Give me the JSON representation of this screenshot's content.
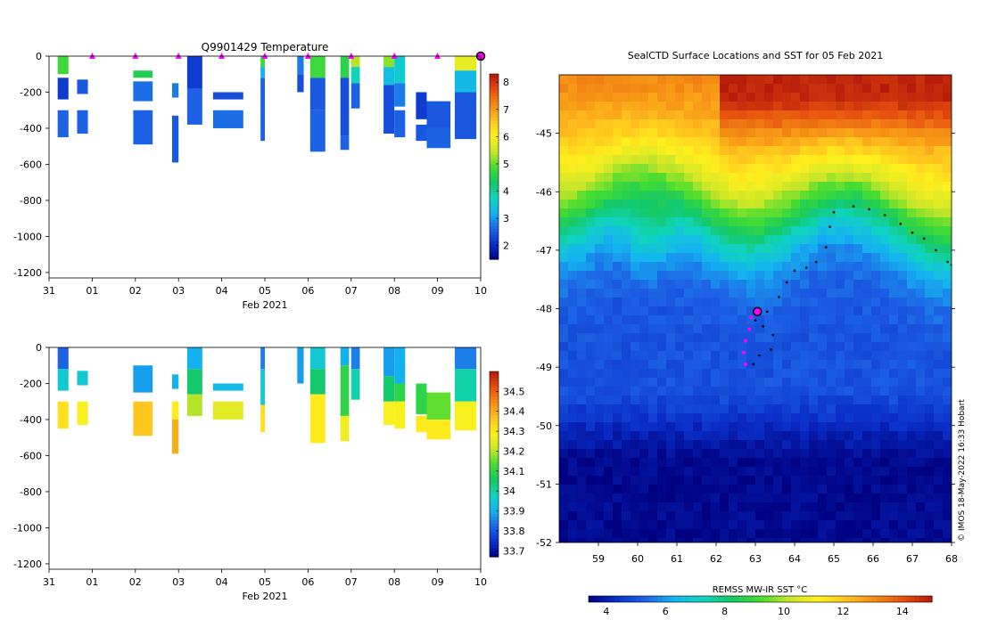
{
  "colors": {
    "temp_scale": [
      "#000080",
      "#0a2fc8",
      "#1e64e6",
      "#14b4f0",
      "#10d4c0",
      "#14c864",
      "#46dc32",
      "#c8e628",
      "#fff01e",
      "#ffc31e",
      "#f58c14",
      "#e6500f",
      "#b4190a"
    ],
    "sal_scale": [
      "#000080",
      "#0a2fc8",
      "#1e64e6",
      "#14b4f0",
      "#10d4c0",
      "#14c864",
      "#46dc32",
      "#c8e628",
      "#fff01e",
      "#ffc31e",
      "#f58c14",
      "#e6500f",
      "#b4190a"
    ],
    "sst_scale": [
      "#000080",
      "#0a2fc8",
      "#1e64e6",
      "#14b4f0",
      "#10d4c0",
      "#14c864",
      "#46dc32",
      "#c8e628",
      "#fff01e",
      "#ffc31e",
      "#f58c14",
      "#e6500f",
      "#b4190a"
    ],
    "marker": "#ff00ff"
  },
  "chart_data": [
    {
      "type": "heatmap",
      "id": "temperature",
      "title": "Q9901429  Temperature",
      "xlabel": "Feb 2021",
      "xlim": [
        0,
        10
      ],
      "xticks": [
        0,
        1,
        2,
        3,
        4,
        5,
        6,
        7,
        8,
        9,
        10
      ],
      "xtick_labels": [
        "31",
        "01",
        "02",
        "03",
        "04",
        "05",
        "06",
        "07",
        "08",
        "09",
        "10"
      ],
      "ylim": [
        -1230,
        0
      ],
      "yticks": [
        0,
        -200,
        -400,
        -600,
        -800,
        -1000,
        -1200
      ],
      "ytick_labels": [
        "0",
        "-200",
        "-400",
        "-600",
        "-800",
        "-1000",
        "-1200"
      ],
      "colorbar": {
        "range": [
          1.5,
          8.3
        ],
        "ticks": [
          2,
          3,
          4,
          5,
          6,
          7,
          8
        ],
        "labels": [
          "2",
          "3",
          "4",
          "5",
          "6",
          "7",
          "8"
        ]
      },
      "markers_x": [
        1,
        2,
        3,
        4,
        5,
        6,
        7,
        8,
        9
      ],
      "end_marker_x": 10,
      "profiles": [
        {
          "x0": 0.2,
          "x1": 0.45,
          "segs": [
            [
              0,
              -100,
              4.8
            ],
            [
              -120,
              -240,
              2.2
            ],
            [
              -300,
              -450,
              2.6
            ]
          ]
        },
        {
          "x0": 0.65,
          "x1": 0.9,
          "segs": [
            [
              -130,
              -210,
              2.5
            ],
            [
              -300,
              -430,
              2.6
            ]
          ]
        },
        {
          "x0": 1.95,
          "x1": 2.4,
          "segs": [
            [
              -80,
              -120,
              4.5
            ],
            [
              -140,
              -250,
              2.7
            ],
            [
              -300,
              -490,
              2.6
            ]
          ]
        },
        {
          "x0": 2.85,
          "x1": 3.0,
          "segs": [
            [
              -150,
              -230,
              2.8
            ],
            [
              -330,
              -590,
              2.5
            ]
          ]
        },
        {
          "x0": 3.2,
          "x1": 3.55,
          "segs": [
            [
              0,
              -180,
              2.2
            ],
            [
              -180,
              -380,
              2.6
            ]
          ]
        },
        {
          "x0": 3.8,
          "x1": 4.5,
          "segs": [
            [
              -200,
              -240,
              2.4
            ],
            [
              -300,
              -400,
              2.7
            ]
          ]
        },
        {
          "x0": 4.9,
          "x1": 5.0,
          "segs": [
            [
              0,
              -60,
              4.8
            ],
            [
              -60,
              -120,
              3.2
            ],
            [
              -120,
              -470,
              2.6
            ]
          ]
        },
        {
          "x0": 5.75,
          "x1": 5.9,
          "segs": [
            [
              0,
              -100,
              2.8
            ],
            [
              -100,
              -200,
              2.4
            ]
          ]
        },
        {
          "x0": 6.05,
          "x1": 6.4,
          "segs": [
            [
              0,
              -120,
              4.8
            ],
            [
              -120,
              -300,
              2.5
            ],
            [
              -300,
              -530,
              2.6
            ]
          ]
        },
        {
          "x0": 6.75,
          "x1": 6.95,
          "segs": [
            [
              0,
              -120,
              4.6
            ],
            [
              -120,
              -440,
              2.4
            ],
            [
              -440,
              -520,
              2.6
            ]
          ]
        },
        {
          "x0": 7.0,
          "x1": 7.2,
          "segs": [
            [
              0,
              -60,
              5.4
            ],
            [
              -60,
              -150,
              3.8
            ],
            [
              -150,
              -290,
              2.6
            ]
          ]
        },
        {
          "x0": 7.75,
          "x1": 8.0,
          "segs": [
            [
              0,
              -60,
              5.2
            ],
            [
              -60,
              -160,
              3.4
            ],
            [
              -160,
              -430,
              2.4
            ]
          ]
        },
        {
          "x0": 8.0,
          "x1": 8.25,
          "segs": [
            [
              0,
              -150,
              3.6
            ],
            [
              -150,
              -280,
              2.8
            ],
            [
              -300,
              -450,
              2.6
            ]
          ]
        },
        {
          "x0": 8.5,
          "x1": 8.75,
          "segs": [
            [
              -200,
              -350,
              2.2
            ],
            [
              -380,
              -470,
              2.5
            ]
          ]
        },
        {
          "x0": 8.75,
          "x1": 9.3,
          "segs": [
            [
              -250,
              -400,
              2.5
            ],
            [
              -400,
              -510,
              2.6
            ]
          ]
        },
        {
          "x0": 9.4,
          "x1": 9.9,
          "segs": [
            [
              0,
              -80,
              5.8
            ],
            [
              -80,
              -200,
              3.3
            ],
            [
              -200,
              -460,
              2.5
            ]
          ]
        }
      ]
    },
    {
      "type": "heatmap",
      "id": "salinity",
      "title": "",
      "xlabel": "Feb 2021",
      "xlim": [
        0,
        10
      ],
      "xticks": [
        0,
        1,
        2,
        3,
        4,
        5,
        6,
        7,
        8,
        9,
        10
      ],
      "xtick_labels": [
        "31",
        "01",
        "02",
        "03",
        "04",
        "05",
        "06",
        "07",
        "08",
        "09",
        "10"
      ],
      "ylim": [
        -1230,
        0
      ],
      "yticks": [
        0,
        -200,
        -400,
        -600,
        -800,
        -1000,
        -1200
      ],
      "ytick_labels": [
        "0",
        "-200",
        "-400",
        "-600",
        "-800",
        "-1000",
        "-1200"
      ],
      "colorbar": {
        "range": [
          33.67,
          34.6
        ],
        "ticks": [
          33.7,
          33.8,
          33.9,
          34,
          34.1,
          34.2,
          34.3,
          34.4,
          34.5
        ],
        "labels": [
          "33.7",
          "33.8",
          "33.9",
          "34",
          "34.1",
          "34.2",
          "34.3",
          "34.4",
          "34.5"
        ]
      },
      "profiles": [
        {
          "x0": 0.2,
          "x1": 0.45,
          "segs": [
            [
              0,
              -120,
              33.82
            ],
            [
              -120,
              -240,
              33.95
            ],
            [
              -300,
              -450,
              34.32
            ]
          ]
        },
        {
          "x0": 0.65,
          "x1": 0.9,
          "segs": [
            [
              -130,
              -210,
              33.95
            ],
            [
              -300,
              -430,
              34.28
            ]
          ]
        },
        {
          "x0": 1.95,
          "x1": 2.4,
          "segs": [
            [
              -100,
              -250,
              33.88
            ],
            [
              -300,
              -490,
              34.36
            ]
          ]
        },
        {
          "x0": 2.85,
          "x1": 3.0,
          "segs": [
            [
              -150,
              -230,
              33.9
            ],
            [
              -300,
              -400,
              34.3
            ],
            [
              -400,
              -590,
              34.4
            ]
          ]
        },
        {
          "x0": 3.2,
          "x1": 3.55,
          "segs": [
            [
              0,
              -120,
              33.9
            ],
            [
              -120,
              -260,
              34.05
            ],
            [
              -260,
              -380,
              34.2
            ]
          ]
        },
        {
          "x0": 3.8,
          "x1": 4.5,
          "segs": [
            [
              -200,
              -240,
              33.92
            ],
            [
              -300,
              -400,
              34.25
            ]
          ]
        },
        {
          "x0": 4.9,
          "x1": 5.0,
          "segs": [
            [
              0,
              -120,
              33.85
            ],
            [
              -120,
              -320,
              33.95
            ],
            [
              -320,
              -470,
              34.32
            ]
          ]
        },
        {
          "x0": 5.75,
          "x1": 5.9,
          "segs": [
            [
              0,
              -200,
              33.88
            ]
          ]
        },
        {
          "x0": 6.05,
          "x1": 6.4,
          "segs": [
            [
              0,
              -120,
              33.95
            ],
            [
              -120,
              -260,
              34.05
            ],
            [
              -260,
              -530,
              34.3
            ]
          ]
        },
        {
          "x0": 6.75,
          "x1": 6.95,
          "segs": [
            [
              0,
              -100,
              33.9
            ],
            [
              -100,
              -380,
              34.1
            ],
            [
              -380,
              -520,
              34.27
            ]
          ]
        },
        {
          "x0": 7.0,
          "x1": 7.2,
          "segs": [
            [
              0,
              -120,
              33.85
            ],
            [
              -120,
              -290,
              34.0
            ]
          ]
        },
        {
          "x0": 7.75,
          "x1": 8.0,
          "segs": [
            [
              0,
              -160,
              33.88
            ],
            [
              -160,
              -300,
              34.05
            ],
            [
              -300,
              -430,
              34.28
            ]
          ]
        },
        {
          "x0": 8.0,
          "x1": 8.25,
          "segs": [
            [
              0,
              -200,
              33.9
            ],
            [
              -200,
              -300,
              34.1
            ],
            [
              -300,
              -450,
              34.28
            ]
          ]
        },
        {
          "x0": 8.5,
          "x1": 8.75,
          "segs": [
            [
              -200,
              -370,
              34.1
            ],
            [
              -380,
              -470,
              34.3
            ]
          ]
        },
        {
          "x0": 8.75,
          "x1": 9.3,
          "segs": [
            [
              -250,
              -400,
              34.15
            ],
            [
              -400,
              -510,
              34.3
            ]
          ]
        },
        {
          "x0": 9.4,
          "x1": 9.9,
          "segs": [
            [
              0,
              -120,
              33.85
            ],
            [
              -120,
              -300,
              34.0
            ],
            [
              -300,
              -460,
              34.28
            ]
          ]
        }
      ]
    },
    {
      "type": "heatmap",
      "id": "sst_map",
      "title": "SealCTD Surface Locations and SST for 05 Feb 2021",
      "xlabel": "",
      "xlim": [
        58,
        68
      ],
      "xticks": [
        59,
        60,
        61,
        62,
        63,
        64,
        65,
        66,
        67,
        68
      ],
      "xtick_labels": [
        "59",
        "60",
        "61",
        "62",
        "63",
        "64",
        "65",
        "66",
        "67",
        "68"
      ],
      "ylim": [
        -52,
        -44
      ],
      "yticks": [
        -45,
        -46,
        -47,
        -48,
        -49,
        -50,
        -51,
        -52
      ],
      "ytick_labels": [
        "-45",
        "-46",
        "-47",
        "-48",
        "-49",
        "-50",
        "-51",
        "-52"
      ],
      "colorbar": {
        "label": "REMSS MW-IR SST °C",
        "range": [
          3.4,
          15
        ],
        "ticks": [
          4,
          6,
          8,
          10,
          12,
          14
        ],
        "labels": [
          "4",
          "6",
          "8",
          "10",
          "12",
          "14"
        ]
      },
      "track_black": [
        [
          62.95,
          -48.95
        ],
        [
          63.1,
          -48.8
        ],
        [
          63.4,
          -48.7
        ],
        [
          63.45,
          -48.45
        ],
        [
          63.2,
          -48.3
        ],
        [
          63.0,
          -48.2
        ],
        [
          63.3,
          -48.05
        ],
        [
          63.6,
          -47.8
        ],
        [
          63.8,
          -47.55
        ],
        [
          64.0,
          -47.35
        ],
        [
          64.3,
          -47.3
        ],
        [
          64.55,
          -47.2
        ],
        [
          64.8,
          -46.95
        ],
        [
          64.9,
          -46.6
        ],
        [
          65.0,
          -46.35
        ],
        [
          65.5,
          -46.25
        ],
        [
          65.9,
          -46.3
        ],
        [
          66.3,
          -46.4
        ],
        [
          66.7,
          -46.55
        ],
        [
          67.0,
          -46.7
        ],
        [
          67.3,
          -46.8
        ],
        [
          67.6,
          -47.0
        ],
        [
          67.9,
          -47.2
        ],
        [
          68.0,
          -47.25
        ]
      ],
      "track_magenta": [
        [
          62.75,
          -48.95
        ],
        [
          62.7,
          -48.75
        ],
        [
          62.75,
          -48.55
        ],
        [
          62.85,
          -48.35
        ],
        [
          62.9,
          -48.15
        ],
        [
          63.0,
          -48.05
        ]
      ],
      "current_position": [
        63.05,
        -48.05
      ],
      "note": "© IMOS 18-May-2022 16:33 Hobart"
    }
  ]
}
